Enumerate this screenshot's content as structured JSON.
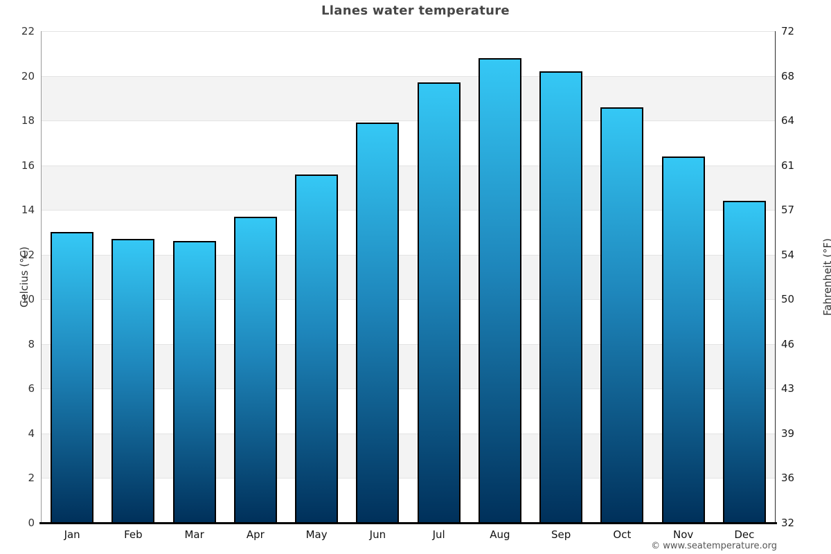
{
  "title": "Llanes water temperature",
  "footer": {
    "copyright": "© www.seatemperature.org"
  },
  "chart_data": {
    "type": "bar",
    "title": "Llanes water temperature",
    "categories": [
      "Jan",
      "Feb",
      "Mar",
      "Apr",
      "May",
      "Jun",
      "Jul",
      "Aug",
      "Sep",
      "Oct",
      "Nov",
      "Dec"
    ],
    "values": [
      13.0,
      12.7,
      12.6,
      13.7,
      15.6,
      17.9,
      19.7,
      20.8,
      20.2,
      18.6,
      16.4,
      14.4
    ],
    "ylabel_left": "Celcius (°C)",
    "ylabel_right": "Fahrenheit (°F)",
    "yticks_left": [
      0,
      2,
      4,
      6,
      8,
      10,
      12,
      14,
      16,
      18,
      20,
      22
    ],
    "yticks_right": [
      32,
      36,
      39,
      43,
      46,
      50,
      54,
      57,
      61,
      64,
      68,
      72
    ],
    "ylim": [
      0,
      22
    ],
    "grid": true,
    "legend": false,
    "band_colors": [
      "#ffffff",
      "#f3f3f3"
    ],
    "gridline_color": "#e3e3e3",
    "bar_border_color": "#000000",
    "bar_gradient": [
      "#35c8f5",
      "#1e86bb",
      "#00305a"
    ]
  }
}
